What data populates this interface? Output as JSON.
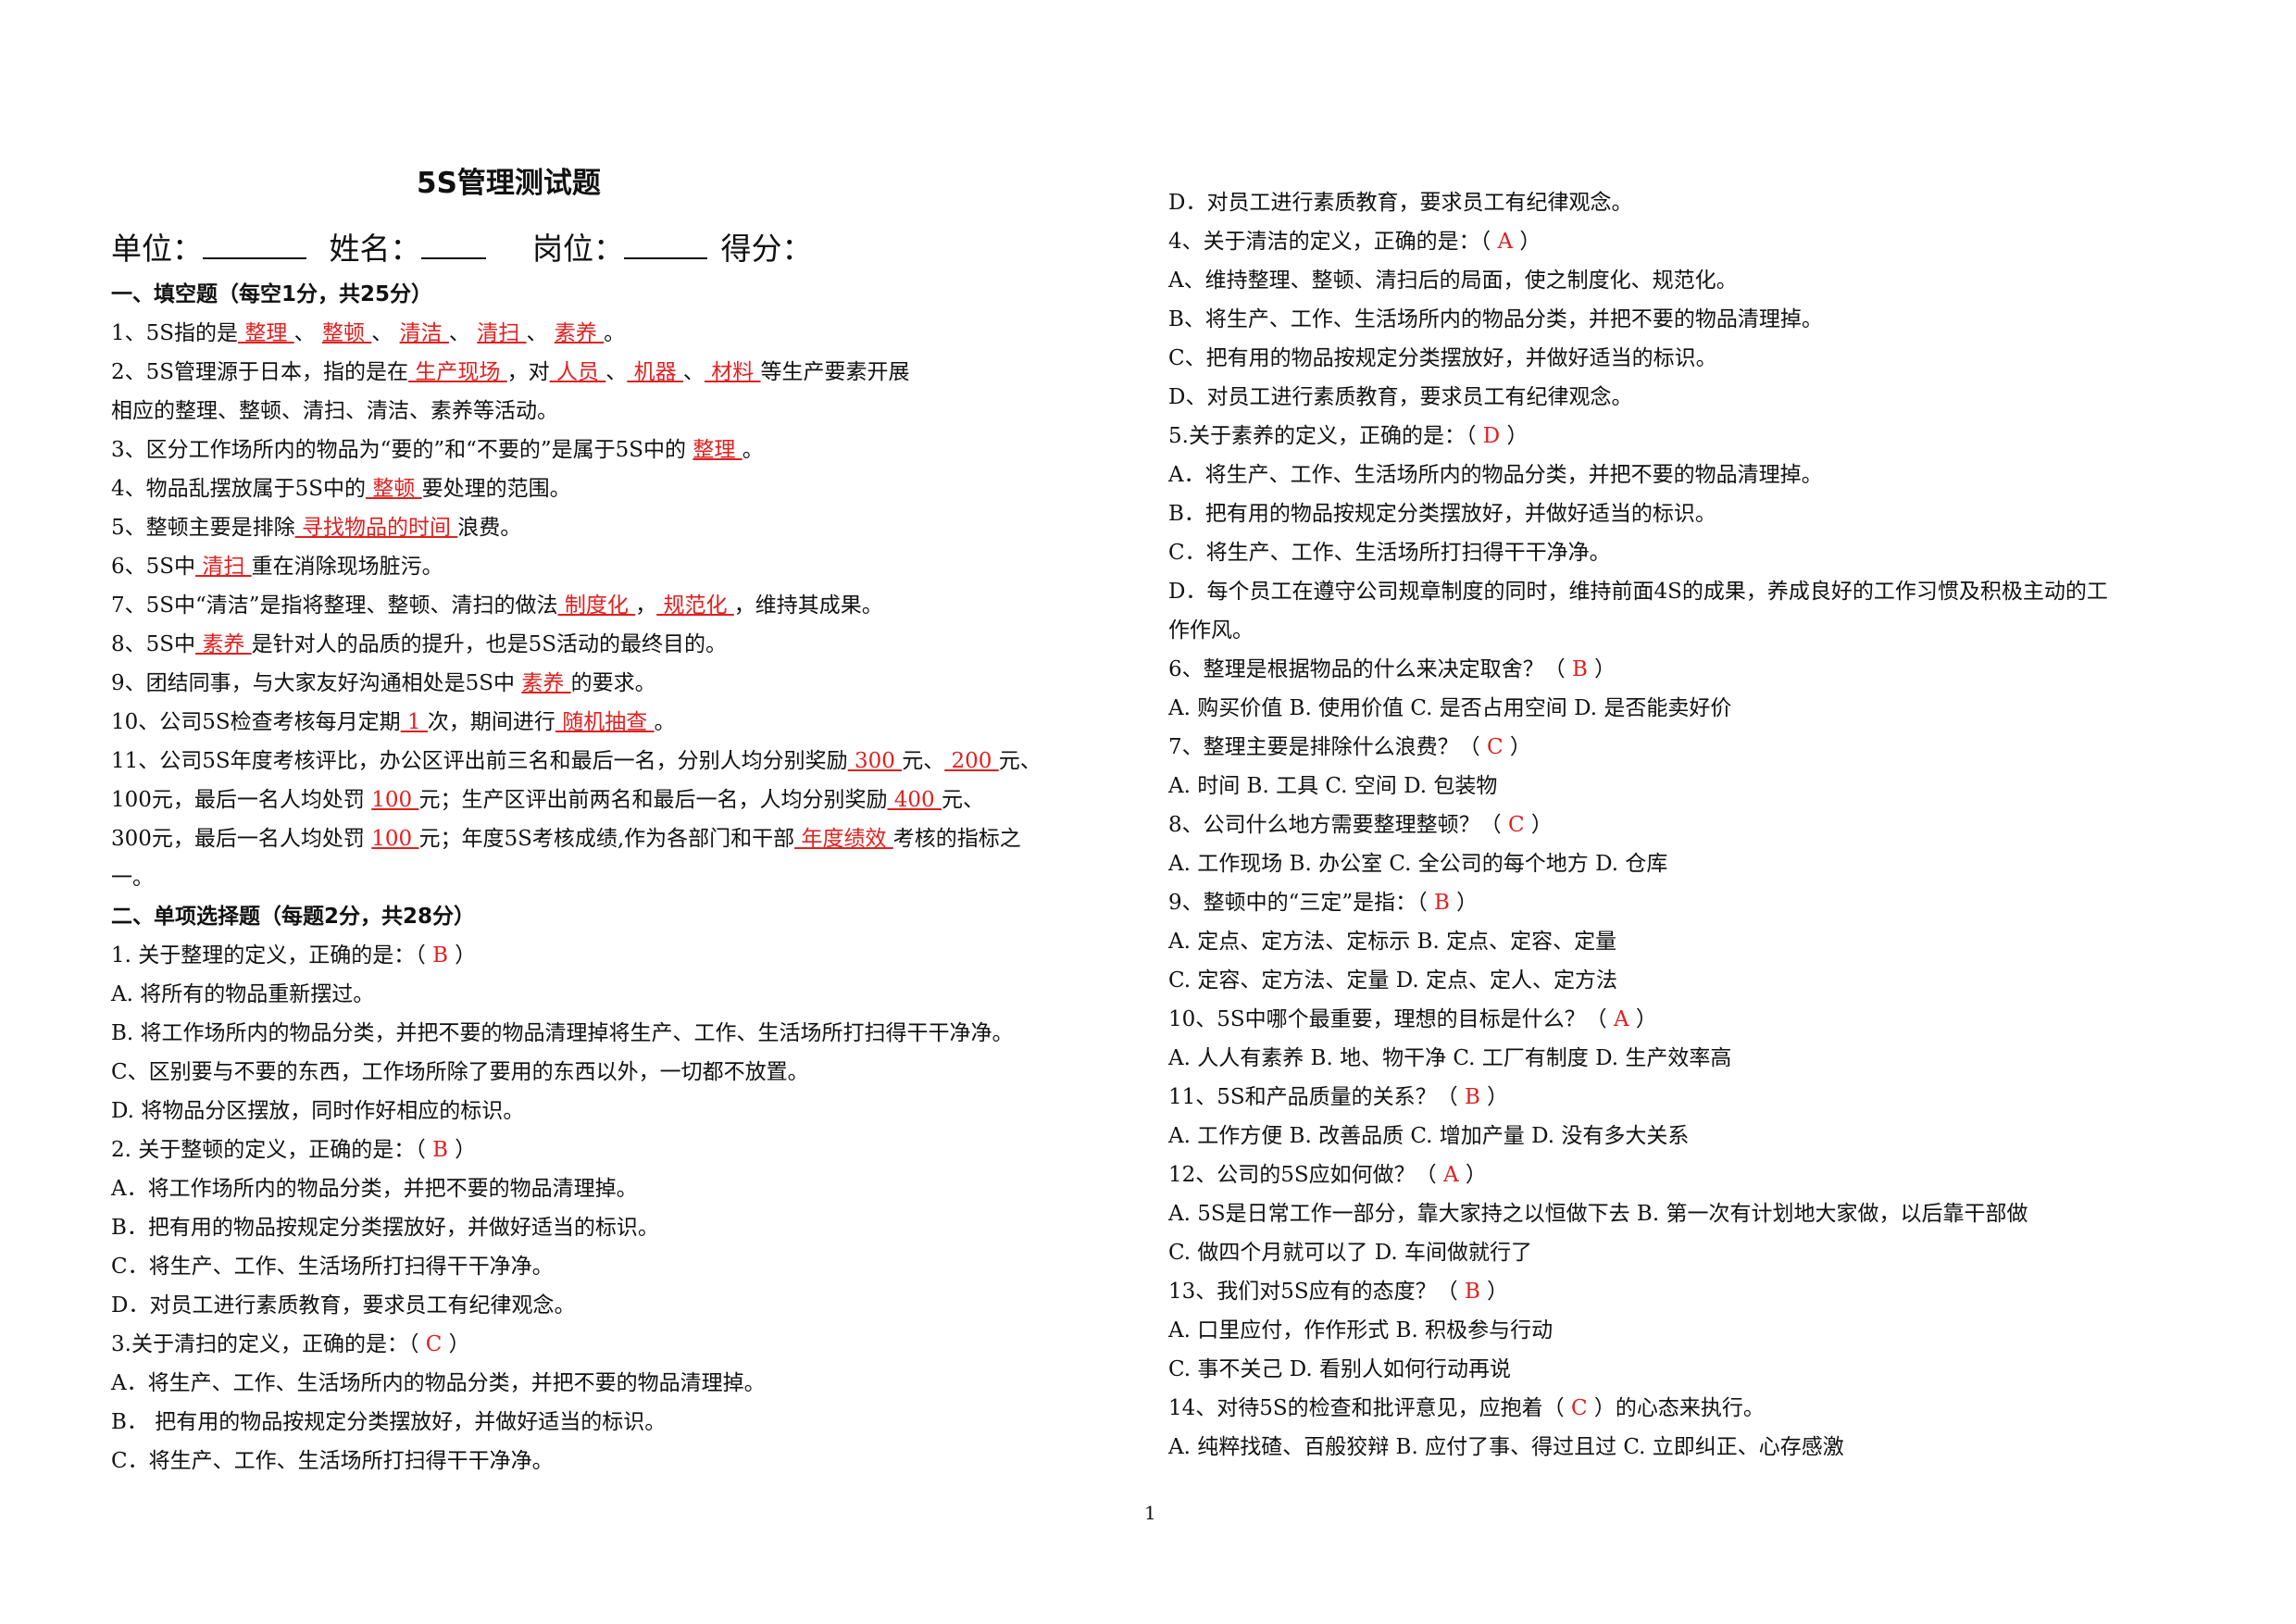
{
  "doc_title": "5S管理测试题",
  "header": {
    "unit_label": "单位：",
    "name_label": "姓名：",
    "post_label": "岗位：",
    "score_label": "得分："
  },
  "left": [
    [
      {
        "t": "一、填空题（每空1分，共25分）",
        "s": "sec"
      }
    ],
    [
      {
        "t": "1、5S指的是"
      },
      {
        "t": " 整理  ",
        "s": "ans"
      },
      {
        "t": " 、 "
      },
      {
        "t": " 整顿  ",
        "s": "ans"
      },
      {
        "t": "、 "
      },
      {
        "t": " 清洁  ",
        "s": "ans"
      },
      {
        "t": "、 "
      },
      {
        "t": " 清扫  ",
        "s": "ans"
      },
      {
        "t": " 、 "
      },
      {
        "t": " 素养  ",
        "s": "ans"
      },
      {
        "t": " 。"
      }
    ],
    [
      {
        "t": "2、5S管理源于日本，指的是在"
      },
      {
        "t": " 生产现场  ",
        "s": "ans"
      },
      {
        "t": "，对"
      },
      {
        "t": " 人员 ",
        "s": "ans"
      },
      {
        "t": "、"
      },
      {
        "t": " 机器 ",
        "s": "ans"
      },
      {
        "t": "、"
      },
      {
        "t": " 材料  ",
        "s": "ans"
      },
      {
        "t": "等生产要素开展"
      }
    ],
    [
      {
        "t": "相应的整理、整顿、清扫、清洁、素养等活动。"
      }
    ],
    [
      {
        "t": "3、区分工作场所内的物品为“要的”和“不要的”是属于5S中的 "
      },
      {
        "t": " 整理 ",
        "s": "ans"
      },
      {
        "t": " 。"
      }
    ],
    [
      {
        "t": "4、物品乱摆放属于5S中的"
      },
      {
        "t": " 整顿  ",
        "s": "ans"
      },
      {
        "t": " 要处理的范围。"
      }
    ],
    [
      {
        "t": "5、整顿主要是排除"
      },
      {
        "t": " 寻找物品的时间 ",
        "s": "ans"
      },
      {
        "t": "浪费。"
      }
    ],
    [
      {
        "t": "6、5S中"
      },
      {
        "t": "  清扫 ",
        "s": "ans"
      },
      {
        "t": "重在消除现场脏污。"
      }
    ],
    [
      {
        "t": "7、5S中“清洁”是指将整理、整顿、清扫的做法"
      },
      {
        "t": " 制度化 ",
        "s": "ans"
      },
      {
        "t": "，"
      },
      {
        "t": " 规范化 ",
        "s": "ans"
      },
      {
        "t": "，维持其成果。"
      }
    ],
    [
      {
        "t": "8、5S中"
      },
      {
        "t": " 素养   ",
        "s": "ans"
      },
      {
        "t": "是针对人的品质的提升，也是5S活动的最终目的。"
      }
    ],
    [
      {
        "t": "9、团结同事，与大家友好沟通相处是5S中 "
      },
      {
        "t": " 素养  ",
        "s": "ans"
      },
      {
        "t": "的要求。"
      }
    ],
    [
      {
        "t": "10、公司5S检查考核每月定期"
      },
      {
        "t": "  1  ",
        "s": "ans"
      },
      {
        "t": "次，期间进行"
      },
      {
        "t": " 随机抽查  ",
        "s": "ans"
      },
      {
        "t": "。"
      }
    ],
    [
      {
        "t": "11、公司5S年度考核评比，办公区评出前三名和最后一名，分别人均分别奖励"
      },
      {
        "t": " 300  ",
        "s": "ans"
      },
      {
        "t": "元、"
      },
      {
        "t": " 200  ",
        "s": "ans"
      },
      {
        "t": "元、"
      }
    ],
    [
      {
        "t": "100元，最后一名人均处罚 "
      },
      {
        "t": " 100  ",
        "s": "ans"
      },
      {
        "t": "元；生产区评出前两名和最后一名，人均分别奖励"
      },
      {
        "t": " 400  ",
        "s": "ans"
      },
      {
        "t": "元、"
      }
    ],
    [
      {
        "t": "300元，最后一名人均处罚 "
      },
      {
        "t": " 100  ",
        "s": "ans"
      },
      {
        "t": "元；年度5S考核成绩,作为各部门和干部"
      },
      {
        "t": " 年度绩效 ",
        "s": "ans"
      },
      {
        "t": "考核的指标之"
      }
    ],
    [
      {
        "t": "一。"
      }
    ],
    [
      {
        "t": "二、单项选择题（每题2分，共28分）",
        "s": "sec"
      }
    ],
    [
      {
        "t": "1.   关于整理的定义，正确的是：（   "
      },
      {
        "t": "B",
        "s": "ch"
      },
      {
        "t": "    ）"
      }
    ],
    [
      {
        "t": "A. 将所有的物品重新摆过。"
      }
    ],
    [
      {
        "t": "B.   将工作场所内的物品分类，并把不要的物品清理掉将生产、工作、生活场所打扫得干干净净。"
      }
    ],
    [
      {
        "t": "C、区别要与不要的东西，工作场所除了要用的东西以外，一切都不放置。"
      }
    ],
    [
      {
        "t": "D. 将物品分区摆放，同时作好相应的标识。"
      }
    ],
    [
      {
        "t": "2.   关于整顿的定义，正确的是：（   "
      },
      {
        "t": "B",
        "s": "ch"
      },
      {
        "t": "    ）"
      }
    ],
    [
      {
        "t": "A．将工作场所内的物品分类，并把不要的物品清理掉。"
      }
    ],
    [
      {
        "t": "B．把有用的物品按规定分类摆放好，并做好适当的标识。"
      }
    ],
    [
      {
        "t": "C．将生产、工作、生活场所打扫得干干净净。"
      }
    ],
    [
      {
        "t": "D．对员工进行素质教育，要求员工有纪律观念。"
      }
    ],
    [
      {
        "t": "3.关于清扫的定义，正确的是：（   "
      },
      {
        "t": "C",
        "s": "ch"
      },
      {
        "t": "    ）"
      }
    ],
    [
      {
        "t": "A．将生产、工作、生活场所内的物品分类，并把不要的物品清理掉。"
      }
    ],
    [
      {
        "t": "B．  把有用的物品按规定分类摆放好，并做好适当的标识。"
      }
    ],
    [
      {
        "t": "C．将生产、工作、生活场所打扫得干干净净。"
      }
    ]
  ],
  "right": [
    [
      {
        "t": "D．对员工进行素质教育，要求员工有纪律观念。"
      }
    ],
    [
      {
        "t": "4、关于清洁的定义，正确的是：（   "
      },
      {
        "t": "A",
        "s": "ch"
      },
      {
        "t": "   ）"
      }
    ],
    [
      {
        "t": "A、维持整理、整顿、清扫后的局面，使之制度化、规范化。"
      }
    ],
    [
      {
        "t": "B、将生产、工作、生活场所内的物品分类，并把不要的物品清理掉。"
      }
    ],
    [
      {
        "t": "C、把有用的物品按规定分类摆放好，并做好适当的标识。"
      }
    ],
    [
      {
        "t": "D、对员工进行素质教育，要求员工有纪律观念。"
      }
    ],
    [
      {
        "t": "5.关于素养的定义，正确的是：（    "
      },
      {
        "t": "D",
        "s": "ch"
      },
      {
        "t": "     ）"
      }
    ],
    [
      {
        "t": "A．将生产、工作、生活场所内的物品分类，并把不要的物品清理掉。"
      }
    ],
    [
      {
        "t": "B．把有用的物品按规定分类摆放好，并做好适当的标识。"
      }
    ],
    [
      {
        "t": "C．将生产、工作、生活场所打扫得干干净净。"
      }
    ],
    [
      {
        "t": "D．每个员工在遵守公司规章制度的同时，维持前面4S的成果，养成良好的工作习惯及积极主动的工"
      }
    ],
    [
      {
        "t": "作作风。"
      }
    ],
    [
      {
        "t": "6、整理是根据物品的什么来决定取舍？（    "
      },
      {
        "t": "B",
        "s": "ch"
      },
      {
        "t": "     ）"
      }
    ],
    [
      {
        "t": "A. 购买价值      B. 使用价值     C. 是否占用空间      D. 是否能卖好价"
      }
    ],
    [
      {
        "t": "7、整理主要是排除什么浪费？（    "
      },
      {
        "t": "C",
        "s": "ch"
      },
      {
        "t": "     ）"
      }
    ],
    [
      {
        "t": "A. 时间          B. 工具          C. 空间          D. 包装物"
      }
    ],
    [
      {
        "t": "8、公司什么地方需要整理整顿？（    "
      },
      {
        "t": "C",
        "s": "ch"
      },
      {
        "t": "     ）"
      }
    ],
    [
      {
        "t": "A. 工作现场            B. 办公室           C. 全公司的每个地方             D. 仓库"
      }
    ],
    [
      {
        "t": "9、整顿中的“三定”是指：（    "
      },
      {
        "t": "B",
        "s": "ch"
      },
      {
        "t": "     ）"
      }
    ],
    [
      {
        "t": "A. 定点、定方法、定标示            B. 定点、定容、定量"
      }
    ],
    [
      {
        "t": "C. 定容、定方法、定量              D. 定点、定人、定方法"
      }
    ],
    [
      {
        "t": "10、5S中哪个最重要，理想的目标是什么？（   "
      },
      {
        "t": "A",
        "s": "ch"
      },
      {
        "t": "    ）"
      }
    ],
    [
      {
        "t": "A. 人人有素养        B. 地、物干净        C. 工厂有制度           D. 生产效率高"
      }
    ],
    [
      {
        "t": "11、5S和产品质量的关系？（    "
      },
      {
        "t": "B",
        "s": "ch"
      },
      {
        "t": "     ）"
      }
    ],
    [
      {
        "t": "A. 工作方便       B. 改善品质       C. 增加产量       D. 没有多大关系"
      }
    ],
    [
      {
        "t": "12、公司的5S应如何做？（   "
      },
      {
        "t": "A",
        "s": "ch"
      },
      {
        "t": "     ）"
      }
    ],
    [
      {
        "t": "A. 5S是日常工作一部分，靠大家持之以恒做下去       B. 第一次有计划地大家做，以后靠干部做"
      }
    ],
    [
      {
        "t": "C. 做四个月就可以了                               D. 车间做就行了"
      }
    ],
    [
      {
        "t": "13、我们对5S应有的态度？（   "
      },
      {
        "t": "B",
        "s": "ch"
      },
      {
        "t": "     ）"
      }
    ],
    [
      {
        "t": "A. 口里应付，作作形式                B. 积极参与行动"
      }
    ],
    [
      {
        "t": "C. 事不关己                                   D.  看别人如何行动再说"
      }
    ],
    [
      {
        "t": "14、对待5S的检查和批评意见，应抱着（  "
      },
      {
        "t": "C",
        "s": "ch"
      },
      {
        "t": "   ）的心态来执行。"
      }
    ],
    [
      {
        "t": "A. 纯粹找碴、百般狡辩          B. 应付了事、得过且过      C. 立即纠正、心存感激"
      }
    ]
  ],
  "page_number": "1"
}
